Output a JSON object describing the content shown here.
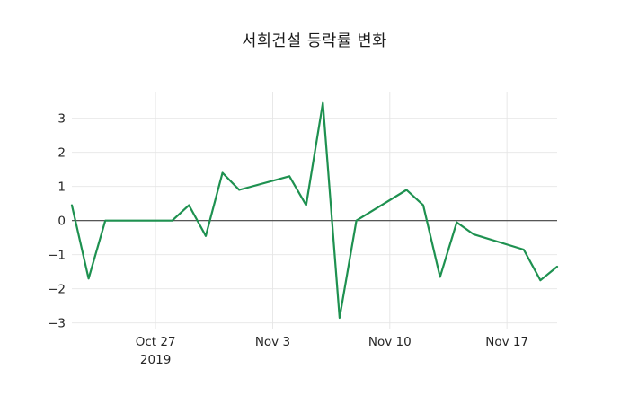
{
  "chart_data": {
    "type": "line",
    "title": "서희건설 등락률 변화",
    "series": [
      {
        "name": "등락률",
        "dates": [
          "2019-10-22",
          "2019-10-23",
          "2019-10-24",
          "2019-10-25",
          "2019-10-28",
          "2019-10-29",
          "2019-10-30",
          "2019-10-31",
          "2019-11-01",
          "2019-11-04",
          "2019-11-05",
          "2019-11-06",
          "2019-11-07",
          "2019-11-08",
          "2019-11-11",
          "2019-11-12",
          "2019-11-13",
          "2019-11-14",
          "2019-11-15",
          "2019-11-18",
          "2019-11-19",
          "2019-11-20"
        ],
        "day_offsets": [
          0,
          1,
          2,
          3,
          6,
          7,
          8,
          9,
          10,
          13,
          14,
          15,
          16,
          17,
          20,
          21,
          22,
          23,
          24,
          27,
          28,
          29
        ],
        "values": [
          0.45,
          -1.7,
          0,
          0,
          0,
          0.45,
          -0.45,
          1.4,
          0.9,
          1.3,
          0.45,
          3.45,
          -2.85,
          0,
          0.9,
          0.45,
          -1.65,
          -0.05,
          -0.4,
          -0.85,
          -1.75,
          -1.35
        ],
        "color": "#1e9150"
      }
    ],
    "xlabel": "",
    "ylabel": "",
    "x_ticks": [
      {
        "offset": 5,
        "label": "Oct 27",
        "sublabel": "2019"
      },
      {
        "offset": 12,
        "label": "Nov 3",
        "sublabel": ""
      },
      {
        "offset": 19,
        "label": "Nov 10",
        "sublabel": ""
      },
      {
        "offset": 26,
        "label": "Nov 17",
        "sublabel": ""
      }
    ],
    "y_ticks": [
      {
        "value": 3,
        "label": "3"
      },
      {
        "value": 2,
        "label": "2"
      },
      {
        "value": 1,
        "label": "1"
      },
      {
        "value": 0,
        "label": "0"
      },
      {
        "value": -1,
        "label": "−1"
      },
      {
        "value": -2,
        "label": "−2"
      },
      {
        "value": -3,
        "label": "−3"
      }
    ],
    "xlim": [
      0,
      29
    ],
    "ylim": [
      -3.165,
      3.765
    ],
    "grid": true,
    "zero_line": true,
    "legend_position": "none"
  },
  "colors": {
    "line": "#1e9150",
    "grid": "#e5e5e5",
    "zero_line": "#404040",
    "tick_text": "#262626",
    "background": "#ffffff"
  }
}
